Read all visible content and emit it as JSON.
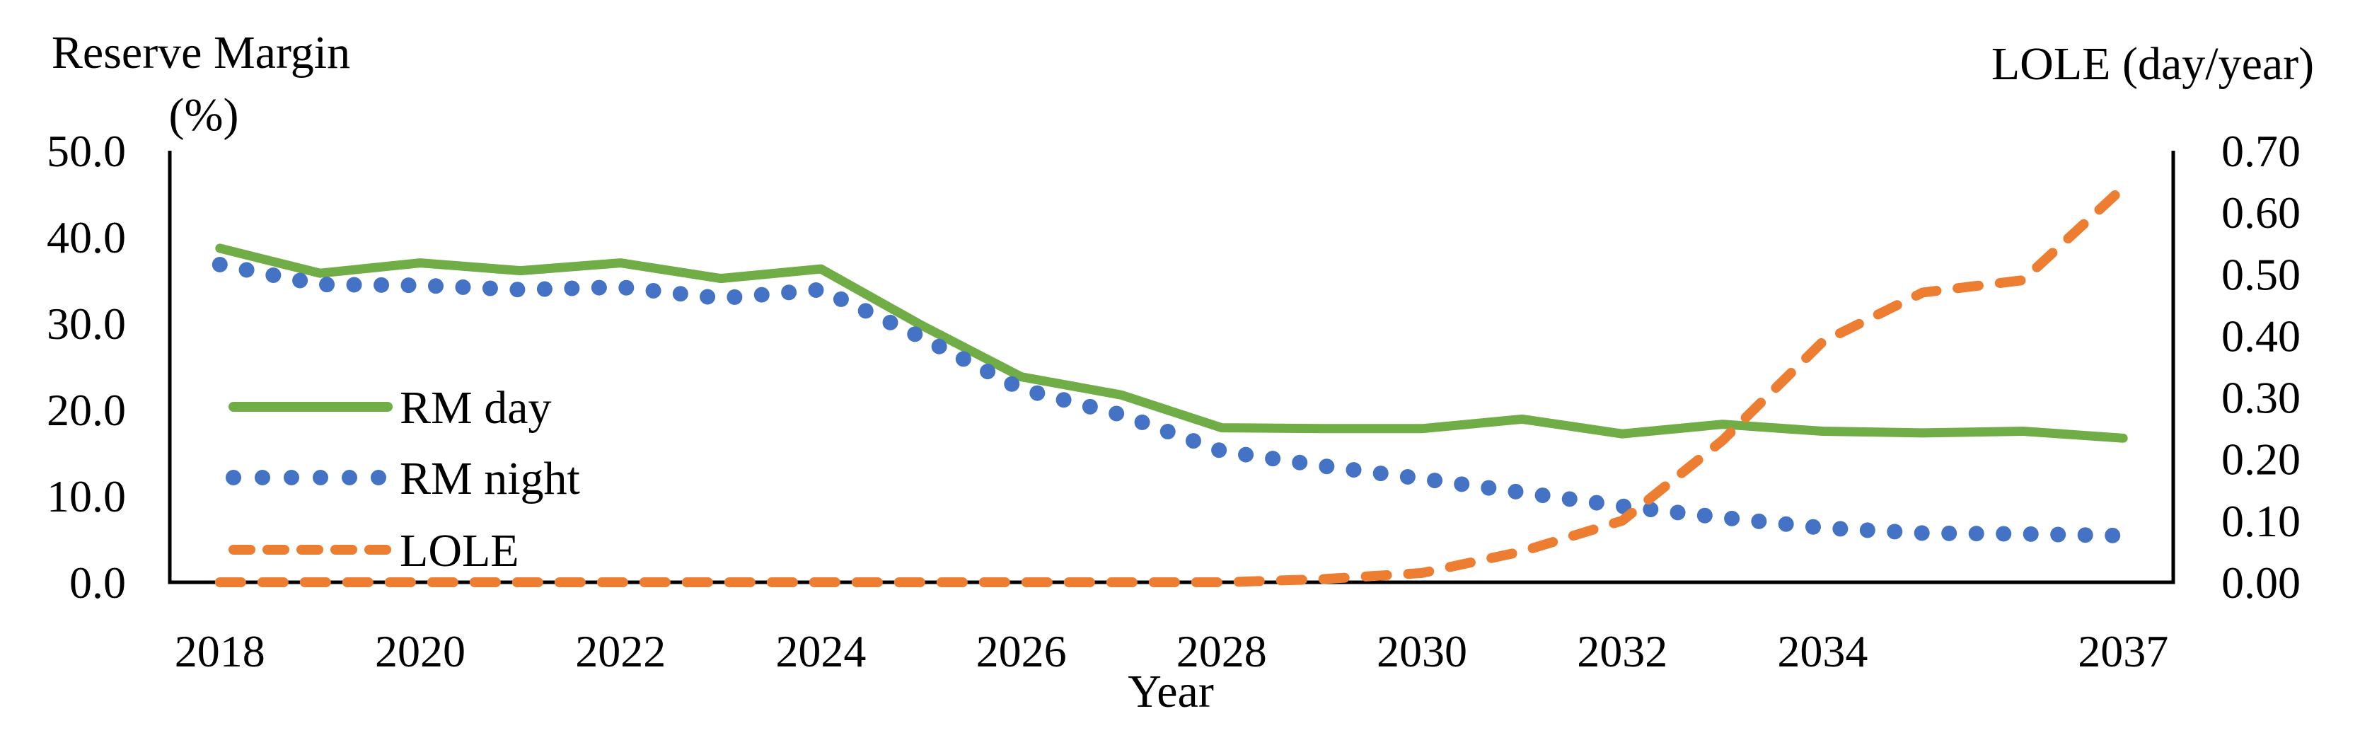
{
  "figure": {
    "left_axis_title_line1": "Reserve Margin",
    "left_axis_title_line2": "(%)",
    "right_axis_title": "LOLE (day/year)",
    "x_axis_title": "Year"
  },
  "colors": {
    "rm_day": "#70AD47",
    "rm_night": "#4472C4",
    "lole": "#ED7D31",
    "axis": "#000000",
    "text": "#000000"
  },
  "chart_data": {
    "type": "line",
    "title": "",
    "xlabel": "Year",
    "x": [
      2018,
      2019,
      2020,
      2021,
      2022,
      2023,
      2024,
      2025,
      2026,
      2027,
      2028,
      2029,
      2030,
      2031,
      2032,
      2033,
      2034,
      2035,
      2036,
      2037
    ],
    "x_tick_labels": [
      "2018",
      "2020",
      "2022",
      "2024",
      "2026",
      "2028",
      "2030",
      "2032",
      "2034",
      "2037"
    ],
    "x_tick_years": [
      2018,
      2020,
      2022,
      2024,
      2026,
      2028,
      2030,
      2032,
      2034,
      2037
    ],
    "left_axis": {
      "label": "Reserve Margin (%)",
      "range": [
        0,
        50
      ],
      "tick_labels": [
        "50.0",
        "40.0",
        "30.0",
        "20.0",
        "10.0",
        "0.0"
      ],
      "tick_values": [
        50,
        40,
        30,
        20,
        10,
        0
      ]
    },
    "right_axis": {
      "label": "LOLE (day/year)",
      "range": [
        0,
        0.7
      ],
      "tick_labels": [
        "0.70",
        "0.60",
        "0.50",
        "0.40",
        "0.30",
        "0.20",
        "0.10",
        "0.00"
      ],
      "tick_values": [
        0.7,
        0.6,
        0.5,
        0.4,
        0.3,
        0.2,
        0.1,
        0.0
      ]
    },
    "grid": false,
    "legend_position": "inside-left",
    "series": [
      {
        "name": "RM day",
        "axis": "left",
        "style": "solid",
        "color": "#70AD47",
        "values": [
          38.7,
          35.8,
          37.0,
          36.1,
          37.0,
          35.2,
          36.3,
          29.8,
          23.8,
          21.7,
          17.9,
          17.8,
          17.8,
          18.9,
          17.2,
          18.3,
          17.5,
          17.3,
          17.5,
          16.7
        ]
      },
      {
        "name": "RM night",
        "axis": "left",
        "style": "dotted",
        "color": "#4472C4",
        "values": [
          36.8,
          34.5,
          34.4,
          33.9,
          34.2,
          32.9,
          33.9,
          28.4,
          22.4,
          19.4,
          15.2,
          13.5,
          12.0,
          10.4,
          8.8,
          7.5,
          6.3,
          5.7,
          5.6,
          5.4
        ]
      },
      {
        "name": "LOLE",
        "axis": "right",
        "style": "dashed",
        "color": "#ED7D31",
        "values": [
          0.0,
          0.0,
          0.0,
          0.0,
          0.0,
          0.0,
          0.0,
          0.0,
          0.0,
          0.0,
          0.0,
          0.005,
          0.015,
          0.05,
          0.1,
          0.23,
          0.39,
          0.47,
          0.49,
          0.64
        ]
      }
    ]
  }
}
